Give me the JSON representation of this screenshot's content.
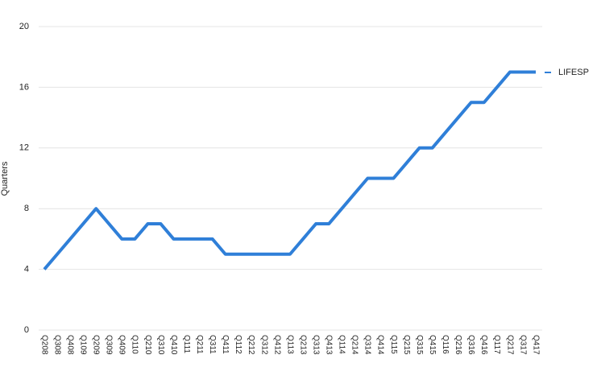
{
  "chart_data": {
    "type": "line",
    "y_label": "Quarters",
    "categories": [
      "Q208",
      "Q308",
      "Q408",
      "Q109",
      "Q209",
      "Q309",
      "Q409",
      "Q110",
      "Q210",
      "Q310",
      "Q410",
      "Q111",
      "Q211",
      "Q311",
      "Q411",
      "Q112",
      "Q212",
      "Q312",
      "Q412",
      "Q113",
      "Q213",
      "Q313",
      "Q413",
      "Q114",
      "Q214",
      "Q314",
      "Q414",
      "Q115",
      "Q215",
      "Q315",
      "Q415",
      "Q116",
      "Q216",
      "Q316",
      "Q416",
      "Q117",
      "Q217",
      "Q317",
      "Q417"
    ],
    "series": [
      {
        "name": "LIFESP",
        "color": "#2f7fd8",
        "values": [
          4,
          5,
          6,
          7,
          8,
          7,
          6,
          6,
          7,
          7,
          6,
          6,
          6,
          6,
          5,
          5,
          5,
          5,
          5,
          5,
          6,
          7,
          7,
          8,
          9,
          10,
          10,
          10,
          11,
          12,
          12,
          13,
          14,
          15,
          15,
          16,
          17,
          17,
          17
        ]
      }
    ],
    "ylim": [
      0,
      20
    ],
    "yticks": [
      0,
      4,
      8,
      12,
      16,
      20
    ],
    "grid": true
  }
}
